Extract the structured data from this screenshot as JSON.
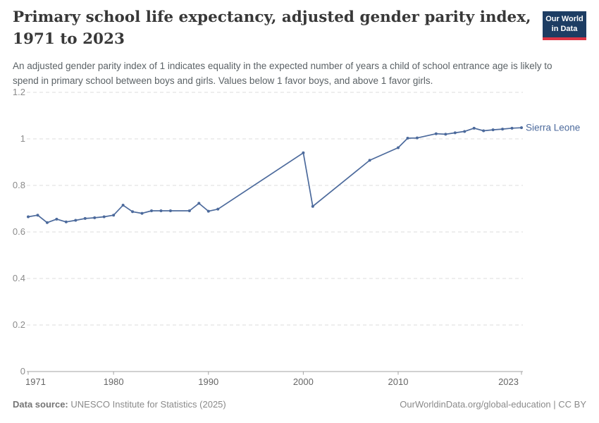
{
  "header": {
    "title": "Primary school life expectancy, adjusted gender parity index, 1971 to 2023",
    "logo": {
      "line1": "Our World",
      "line2": "in Data",
      "bg_color": "#1d3d63",
      "bar_color": "#dc3545"
    }
  },
  "subtitle": "An adjusted gender parity index of 1 indicates equality in the expected number of years a child of school entrance age is likely to spend in primary school between boys and girls. Values below 1 favor boys, and above 1 favor girls.",
  "chart_data": {
    "type": "line",
    "title": "Primary school life expectancy, adjusted gender parity index, 1971 to 2023",
    "xlabel": "",
    "ylabel": "",
    "xlim": [
      1971,
      2023
    ],
    "ylim": [
      0,
      1.2
    ],
    "x_ticks": [
      1971,
      1980,
      1990,
      2000,
      2010,
      2023
    ],
    "y_ticks": [
      0,
      0.2,
      0.4,
      0.6,
      0.8,
      1,
      1.2
    ],
    "y_tick_labels": [
      "0",
      "0.2",
      "0.4",
      "0.6",
      "0.8",
      "1",
      "1.2"
    ],
    "grid": "horizontal-dashed",
    "legend_position": "end-of-line-label",
    "series": [
      {
        "name": "Sierra Leone",
        "color": "#4c6a9c",
        "points": [
          [
            1971,
            0.665
          ],
          [
            1972,
            0.672
          ],
          [
            1973,
            0.64
          ],
          [
            1974,
            0.655
          ],
          [
            1975,
            0.643
          ],
          [
            1976,
            0.65
          ],
          [
            1977,
            0.658
          ],
          [
            1978,
            0.661
          ],
          [
            1979,
            0.665
          ],
          [
            1980,
            0.672
          ],
          [
            1981,
            0.715
          ],
          [
            1982,
            0.687
          ],
          [
            1983,
            0.68
          ],
          [
            1984,
            0.691
          ],
          [
            1985,
            0.691
          ],
          [
            1986,
            0.691
          ],
          [
            1988,
            0.691
          ],
          [
            1989,
            0.723
          ],
          [
            1990,
            0.689
          ],
          [
            1991,
            0.698
          ],
          [
            2000,
            0.94
          ],
          [
            2001,
            0.71
          ],
          [
            2007,
            0.908
          ],
          [
            2010,
            0.962
          ],
          [
            2011,
            1.003
          ],
          [
            2012,
            1.004
          ],
          [
            2014,
            1.022
          ],
          [
            2015,
            1.02
          ],
          [
            2016,
            1.026
          ],
          [
            2017,
            1.032
          ],
          [
            2018,
            1.046
          ],
          [
            2019,
            1.035
          ],
          [
            2020,
            1.039
          ],
          [
            2021,
            1.042
          ],
          [
            2022,
            1.046
          ],
          [
            2023,
            1.048
          ]
        ]
      }
    ],
    "colors": {
      "gridline": "#dcdcdc",
      "axis": "#a3a3a3",
      "y_tick_label": "#8b8b8b",
      "x_tick_label": "#666666"
    }
  },
  "footer": {
    "source_label": "Data source:",
    "source_text": "UNESCO Institute for Statistics (2025)",
    "attribution": "OurWorldinData.org/global-education | CC BY"
  }
}
